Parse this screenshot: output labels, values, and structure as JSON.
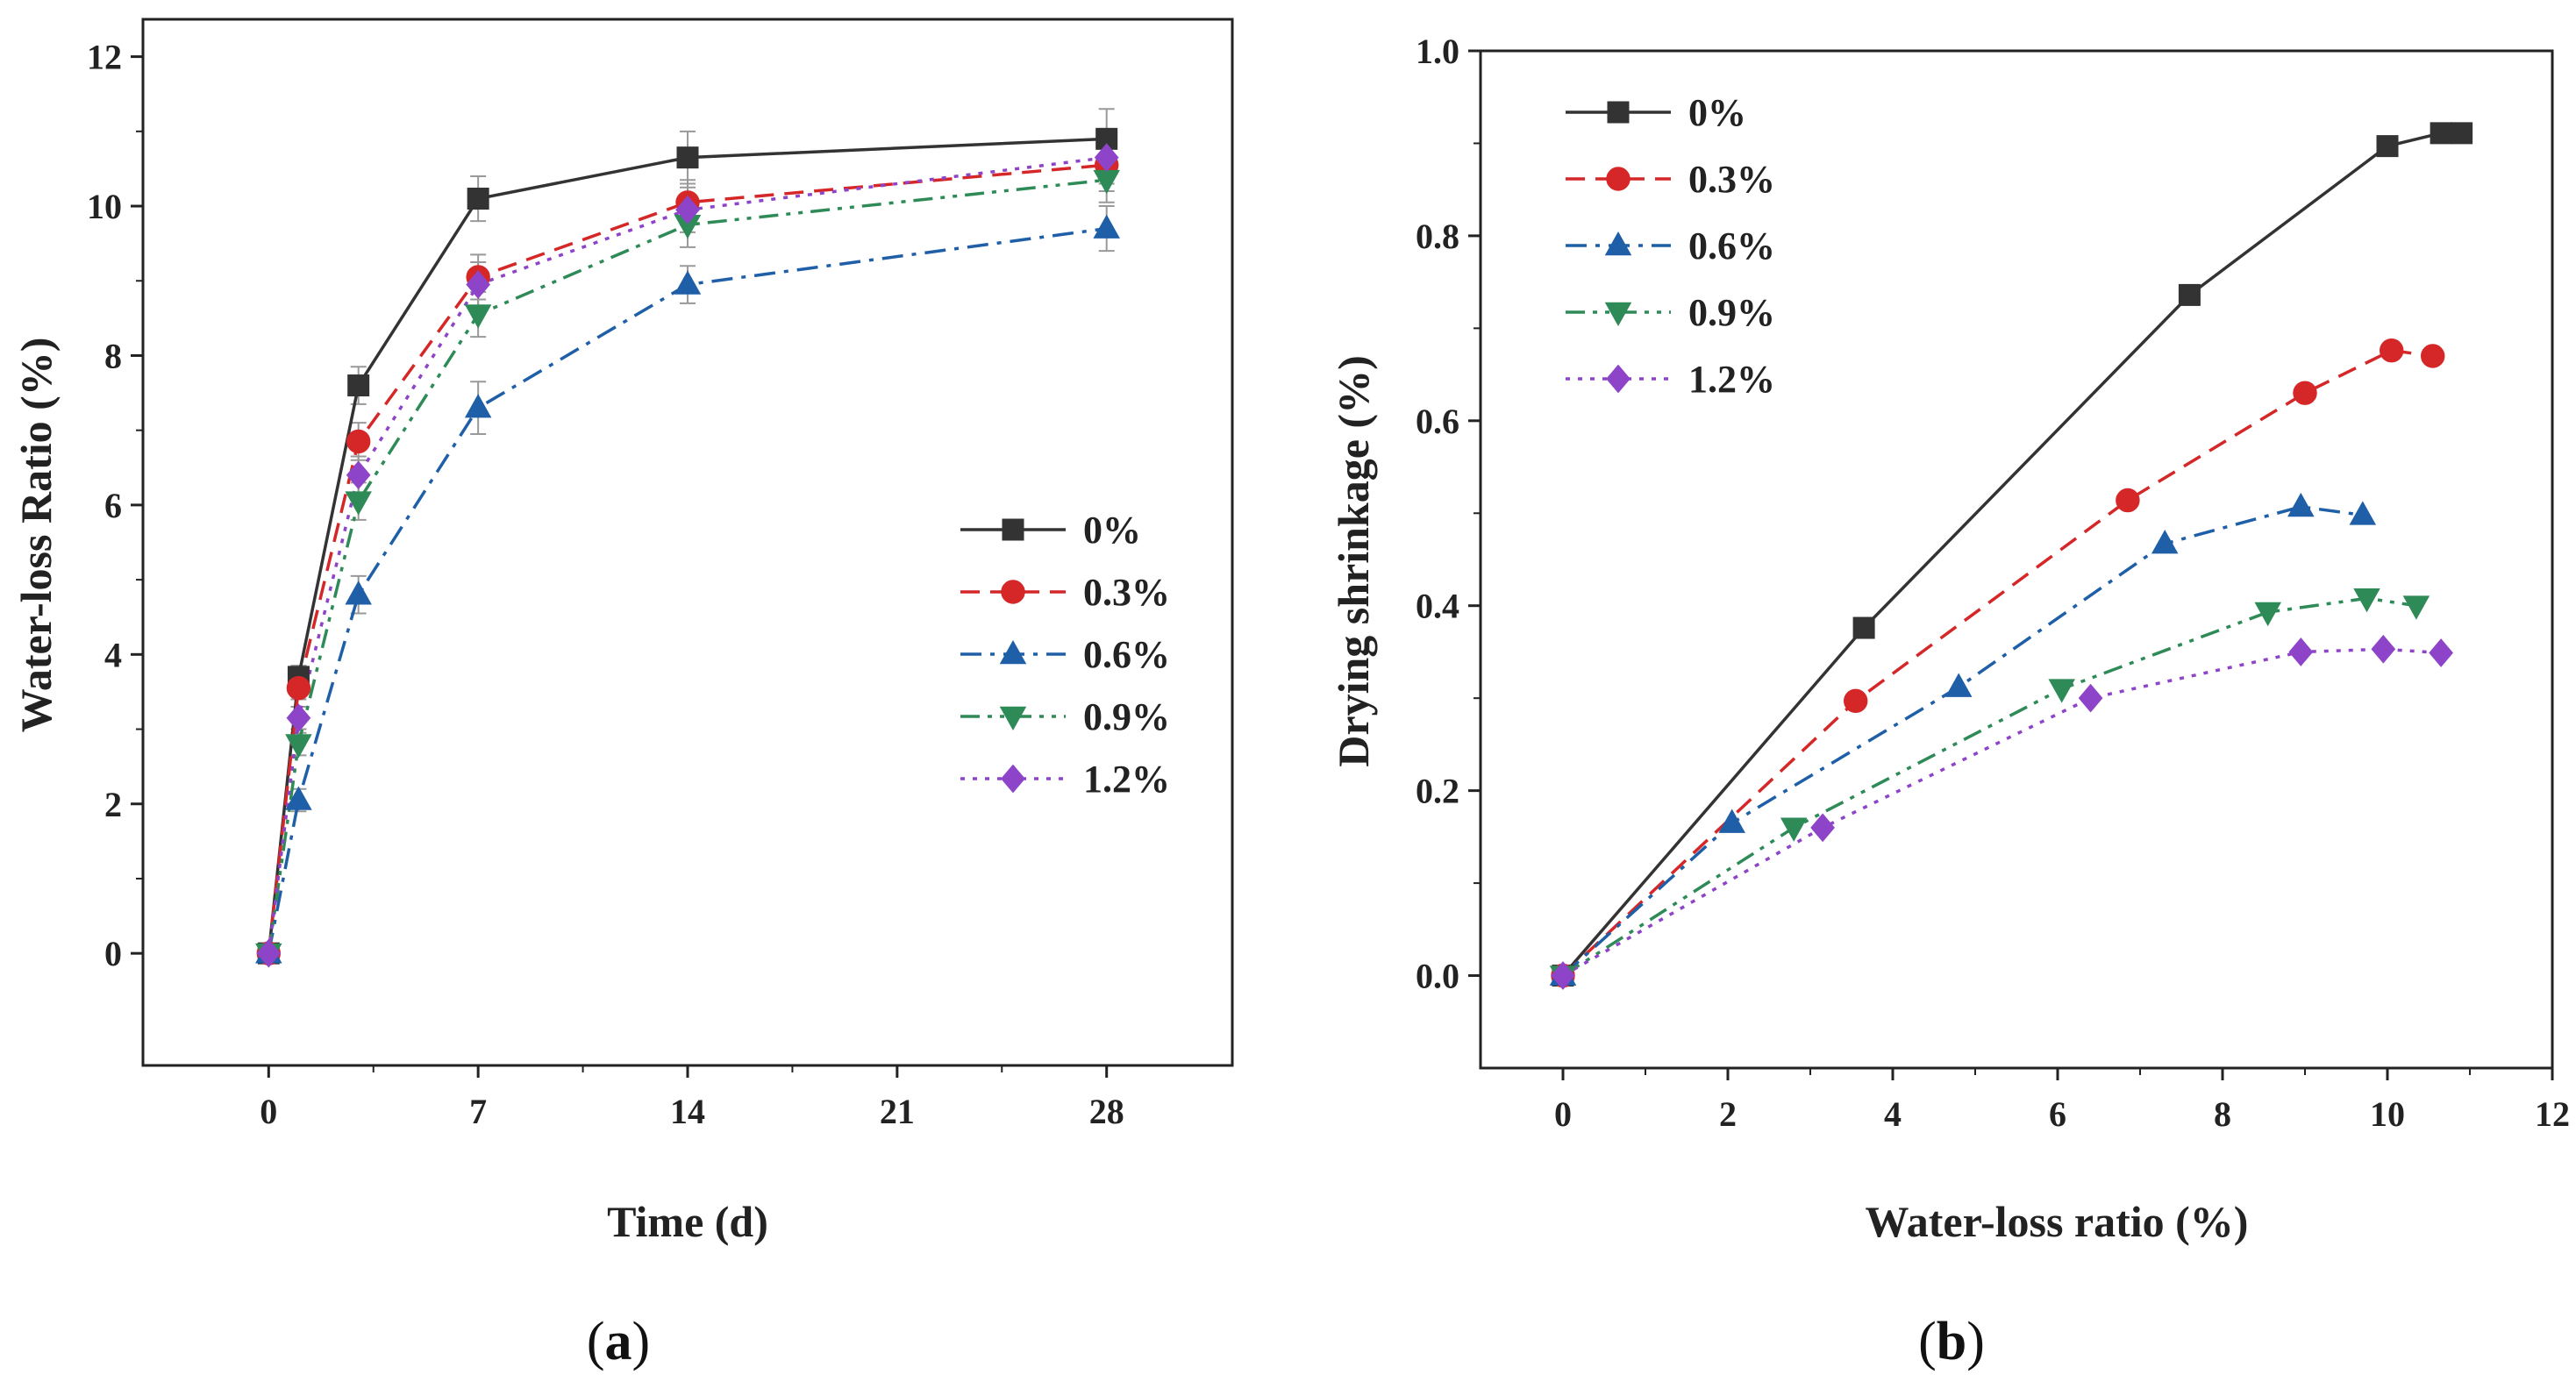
{
  "chart_data": [
    {
      "type": "line",
      "panel_label": "(a)",
      "panel_letter": "a",
      "title": "",
      "xlabel": "Time (d)",
      "ylabel": "Water-loss Ratio (%)",
      "xlim": [
        -4.2,
        32.2
      ],
      "ylim": [
        -1.5,
        12.5
      ],
      "xticks": [
        0,
        7,
        14,
        21,
        28
      ],
      "yticks": [
        0,
        2,
        4,
        6,
        8,
        10,
        12
      ],
      "legend_position": "center-right",
      "x": [
        0,
        1,
        3,
        7,
        14,
        28
      ],
      "series": [
        {
          "name": "0%",
          "color": "#333333",
          "marker": "square",
          "dash": "solid",
          "values": [
            0,
            3.7,
            7.6,
            10.1,
            10.65,
            10.9
          ],
          "errors": [
            0.1,
            0.15,
            0.25,
            0.3,
            0.35,
            0.4
          ]
        },
        {
          "name": "0.3%",
          "color": "#d62728",
          "marker": "circle",
          "dash": "dash",
          "values": [
            0,
            3.55,
            6.85,
            9.05,
            10.05,
            10.55
          ],
          "errors": [
            0.1,
            0.15,
            0.25,
            0.3,
            0.3,
            0.35
          ]
        },
        {
          "name": "0.6%",
          "color": "#1f5fa8",
          "marker": "triangle-up",
          "dash": "dashdot",
          "values": [
            0,
            2.05,
            4.8,
            7.3,
            8.95,
            9.7
          ],
          "errors": [
            0.1,
            0.15,
            0.25,
            0.35,
            0.25,
            0.3
          ]
        },
        {
          "name": "0.9%",
          "color": "#2e8b57",
          "marker": "triangle-down",
          "dash": "dashdotdot",
          "values": [
            0,
            2.8,
            6.05,
            8.55,
            9.75,
            10.35
          ],
          "errors": [
            0.1,
            0.15,
            0.25,
            0.3,
            0.3,
            0.3
          ]
        },
        {
          "name": "1.2%",
          "color": "#8e44c9",
          "marker": "diamond",
          "dash": "dot",
          "values": [
            0,
            3.15,
            6.4,
            8.95,
            9.95,
            10.65
          ],
          "errors": [
            0.1,
            0.15,
            0.25,
            0.3,
            0.3,
            0.35
          ]
        }
      ]
    },
    {
      "type": "line",
      "panel_label": "(b)",
      "panel_letter": "b",
      "title": "",
      "xlabel": "Water-loss ratio (%)",
      "ylabel": "Drying shrinkage (%)",
      "xlim": [
        -1,
        12
      ],
      "ylim": [
        -0.1,
        1.0
      ],
      "xticks": [
        0,
        2,
        4,
        6,
        8,
        10,
        12
      ],
      "yticks": [
        0.0,
        0.2,
        0.4,
        0.6,
        0.8,
        1.0
      ],
      "legend_position": "top-left",
      "series": [
        {
          "name": "0%",
          "color": "#333333",
          "marker": "square",
          "dash": "solid",
          "x": [
            0,
            3.65,
            7.6,
            10.0,
            10.65,
            10.9
          ],
          "y": [
            0,
            0.376,
            0.736,
            0.897,
            0.911,
            0.911
          ]
        },
        {
          "name": "0.3%",
          "color": "#d62728",
          "marker": "circle",
          "dash": "dash",
          "x": [
            0,
            3.55,
            6.85,
            9.0,
            10.05,
            10.55
          ],
          "y": [
            0,
            0.297,
            0.514,
            0.63,
            0.676,
            0.67
          ]
        },
        {
          "name": "0.6%",
          "color": "#1f5fa8",
          "marker": "triangle-up",
          "dash": "dashdot",
          "x": [
            0,
            2.05,
            4.8,
            7.3,
            8.95,
            9.7
          ],
          "y": [
            0,
            0.165,
            0.312,
            0.467,
            0.507,
            0.498
          ]
        },
        {
          "name": "0.9%",
          "color": "#2e8b57",
          "marker": "triangle-down",
          "dash": "dashdotdot",
          "x": [
            0,
            2.8,
            6.05,
            8.55,
            9.75,
            10.35
          ],
          "y": [
            0,
            0.16,
            0.31,
            0.393,
            0.408,
            0.4
          ]
        },
        {
          "name": "1.2%",
          "color": "#8e44c9",
          "marker": "diamond",
          "dash": "dot",
          "x": [
            0,
            3.15,
            6.4,
            8.95,
            9.95,
            10.65
          ],
          "y": [
            0,
            0.16,
            0.3,
            0.35,
            0.353,
            0.349
          ]
        }
      ]
    }
  ]
}
